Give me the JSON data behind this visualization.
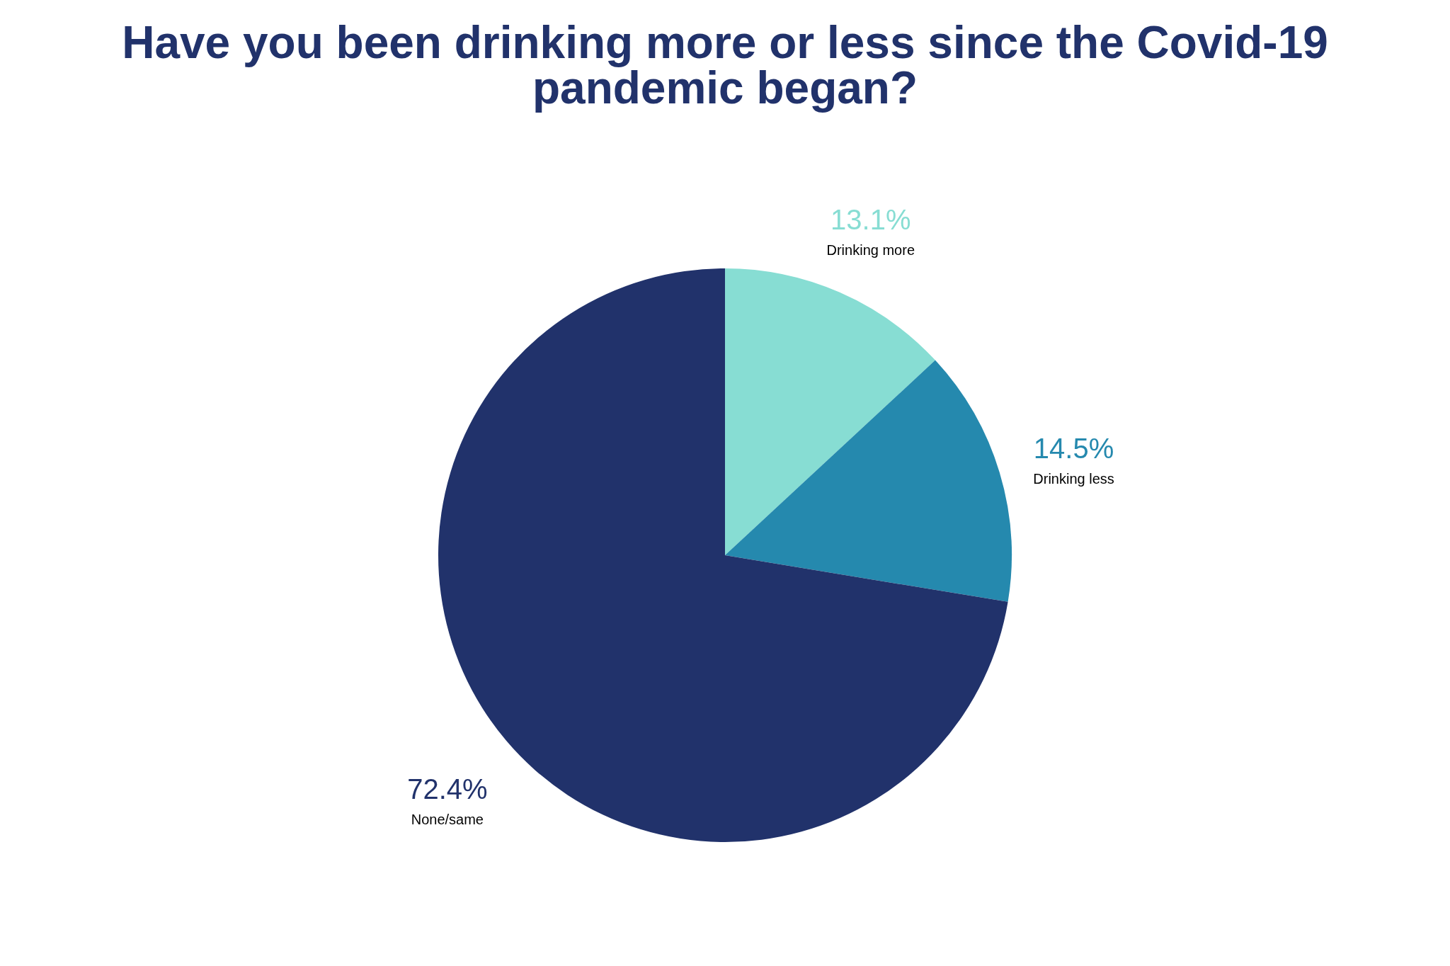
{
  "chart_data": {
    "type": "pie",
    "title": "Have you been drinking more or less since the Covid-19 pandemic began?",
    "categories": [
      "Drinking more",
      "Drinking less",
      "None/same"
    ],
    "values": [
      13.1,
      14.5,
      72.4
    ],
    "colors": [
      "#87ddd3",
      "#2589ae",
      "#21326b"
    ],
    "value_labels": [
      "13.1%",
      "14.5%",
      "72.4%"
    ],
    "legend": false
  }
}
